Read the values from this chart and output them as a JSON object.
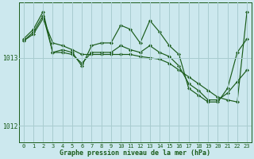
{
  "title": "Graphe pression niveau de la mer (hPa)",
  "bg_color": "#cce8ee",
  "grid_color": "#a8ccd0",
  "line_color": "#1a5c1a",
  "x_labels": [
    "0",
    "1",
    "2",
    "3",
    "4",
    "5",
    "6",
    "7",
    "8",
    "9",
    "10",
    "11",
    "12",
    "13",
    "14",
    "15",
    "16",
    "17",
    "18",
    "19",
    "20",
    "21",
    "22",
    "23"
  ],
  "yticks": [
    1012,
    1013
  ],
  "ylim": [
    1011.75,
    1013.82
  ],
  "series_zigzag": [
    1013.28,
    1013.42,
    1013.68,
    1013.08,
    1013.12,
    1013.08,
    1012.88,
    1013.18,
    1013.22,
    1013.22,
    1013.48,
    1013.42,
    1013.22,
    1013.55,
    1013.38,
    1013.18,
    1013.05,
    1012.55,
    1012.45,
    1012.35,
    1012.35,
    1012.55,
    1013.08,
    1013.28
  ],
  "series_straight": [
    1013.25,
    1013.35,
    1013.58,
    1013.22,
    1013.18,
    1013.12,
    1013.05,
    1013.05,
    1013.05,
    1013.05,
    1013.05,
    1013.05,
    1013.02,
    1013.0,
    1012.98,
    1012.92,
    1012.82,
    1012.72,
    1012.62,
    1012.52,
    1012.42,
    1012.38,
    1012.35,
    1013.68
  ],
  "series_mid": [
    1013.25,
    1013.38,
    1013.62,
    1013.08,
    1013.08,
    1013.05,
    1012.92,
    1013.08,
    1013.08,
    1013.08,
    1013.18,
    1013.12,
    1013.08,
    1013.18,
    1013.08,
    1013.02,
    1012.88,
    1012.62,
    1012.52,
    1012.38,
    1012.38,
    1012.48,
    1012.65,
    1012.82
  ]
}
